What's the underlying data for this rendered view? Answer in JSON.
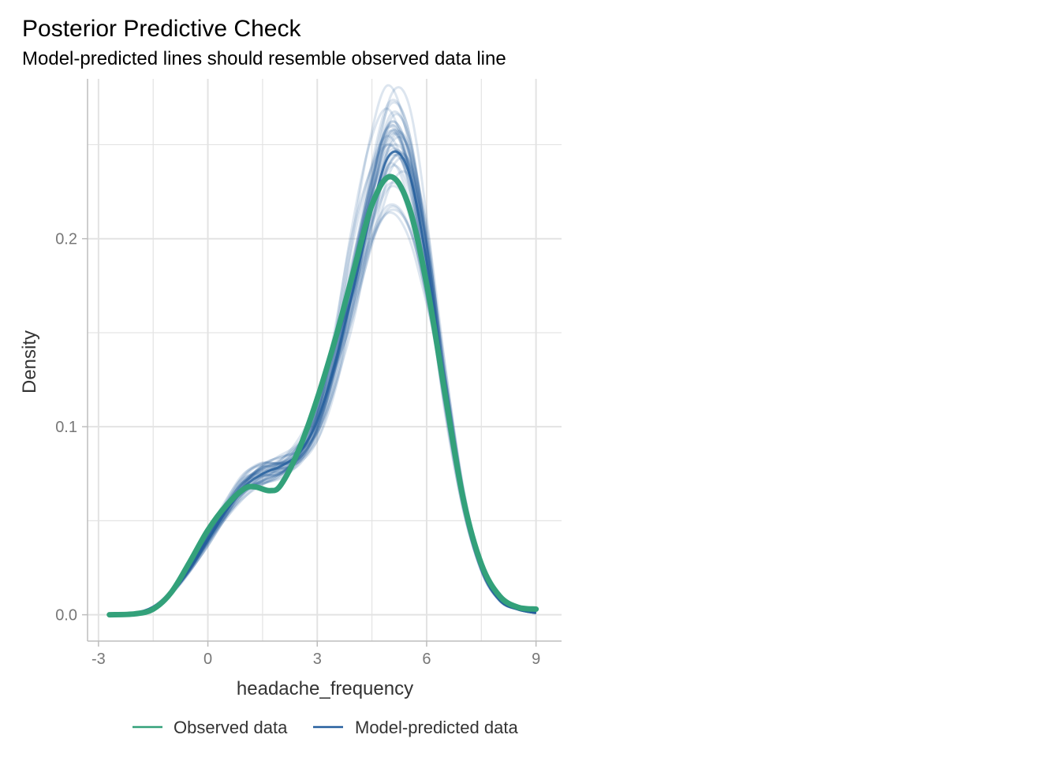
{
  "chart_data": {
    "type": "line",
    "title": "Posterior Predictive Check",
    "subtitle": "Model-predicted lines should resemble observed data line",
    "xlabel": "headache_frequency",
    "ylabel": "Density",
    "xlim": [
      -3.3,
      9.7
    ],
    "ylim": [
      -0.014,
      0.285
    ],
    "x_ticks": [
      -3,
      0,
      3,
      6,
      9
    ],
    "x_tick_labels": [
      "-3",
      "0",
      "3",
      "6",
      "9"
    ],
    "y_ticks": [
      0.0,
      0.1,
      0.2
    ],
    "y_tick_labels": [
      "0.0",
      "0.1",
      "0.2"
    ],
    "grid": true,
    "legend_position": "bottom",
    "colors": {
      "observed": "#33a17a",
      "predicted": "#255f9e",
      "grid": "#e3e3e3",
      "axis": "#bdbdbd",
      "tick_label": "#777777",
      "axis_title": "#333333"
    },
    "series": [
      {
        "name": "Observed data",
        "x": [
          -2.7,
          -2.0,
          -1.5,
          -1.0,
          -0.5,
          0.0,
          0.5,
          1.0,
          1.3,
          1.7,
          2.0,
          2.5,
          3.0,
          3.5,
          4.0,
          4.5,
          5.0,
          5.5,
          6.0,
          6.5,
          7.0,
          7.5,
          8.0,
          8.5,
          9.0
        ],
        "y": [
          0.0,
          0.0005,
          0.003,
          0.012,
          0.028,
          0.045,
          0.058,
          0.067,
          0.068,
          0.066,
          0.069,
          0.088,
          0.115,
          0.147,
          0.183,
          0.218,
          0.233,
          0.218,
          0.176,
          0.118,
          0.062,
          0.027,
          0.01,
          0.004,
          0.003
        ]
      },
      {
        "name": "Model-predicted data",
        "x": [
          -2.7,
          -2.0,
          -1.5,
          -1.0,
          -0.5,
          0.0,
          0.5,
          1.0,
          1.5,
          2.0,
          2.5,
          3.0,
          3.5,
          4.0,
          4.5,
          5.0,
          5.5,
          6.0,
          6.5,
          7.0,
          7.5,
          8.0,
          8.5,
          9.0
        ],
        "y": [
          0.0,
          0.001,
          0.004,
          0.012,
          0.025,
          0.04,
          0.055,
          0.068,
          0.075,
          0.079,
          0.086,
          0.103,
          0.135,
          0.174,
          0.216,
          0.245,
          0.236,
          0.188,
          0.122,
          0.062,
          0.025,
          0.008,
          0.003,
          0.001
        ]
      }
    ]
  }
}
